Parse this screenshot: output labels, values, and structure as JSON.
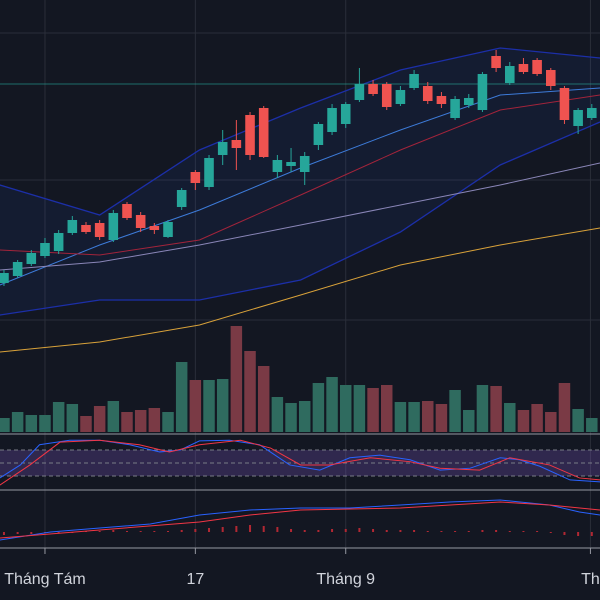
{
  "chart_data": {
    "type": "candlestick",
    "background": "#131722",
    "xlim": [
      -0.29,
      43.6
    ],
    "xticks": [
      {
        "value": 3,
        "label": "Tháng Tám"
      },
      {
        "value": 14,
        "label": "17"
      },
      {
        "value": 25,
        "label": "Tháng 9"
      },
      {
        "value": 42.9,
        "label": "Th"
      }
    ],
    "ylim": [
      -105,
      330
    ],
    "ygrid": [
      297,
      150,
      10
    ],
    "price_line": 246,
    "up_color": "#26a69a",
    "down_color": "#ef5350",
    "open": [
      47,
      54,
      66,
      74,
      79,
      97,
      105,
      107,
      90,
      126,
      115,
      104,
      93,
      123,
      158,
      143,
      175,
      190,
      215,
      222,
      158,
      164,
      158,
      185,
      198,
      206,
      230,
      246,
      246,
      226,
      242,
      244,
      234,
      212,
      225,
      220,
      274,
      247,
      266,
      270,
      260,
      242,
      204,
      212
    ],
    "high": [
      60,
      70,
      80,
      92,
      100,
      114,
      108,
      110,
      120,
      128,
      118,
      107,
      110,
      142,
      160,
      175,
      200,
      210,
      218,
      224,
      175,
      182,
      178,
      208,
      226,
      228,
      262,
      250,
      248,
      244,
      260,
      248,
      238,
      234,
      236,
      258,
      280,
      268,
      272,
      272,
      262,
      244,
      222,
      226
    ],
    "low": [
      44,
      52,
      64,
      72,
      76,
      95,
      96,
      90,
      88,
      110,
      98,
      96,
      92,
      120,
      140,
      140,
      165,
      160,
      170,
      172,
      152,
      158,
      145,
      180,
      195,
      202,
      228,
      234,
      220,
      224,
      240,
      226,
      222,
      210,
      222,
      218,
      258,
      245,
      256,
      254,
      240,
      206,
      196,
      210
    ],
    "close": [
      57,
      68,
      77,
      87,
      97,
      110,
      98,
      93,
      117,
      112,
      102,
      100,
      108,
      140,
      147,
      172,
      188,
      182,
      175,
      173,
      170,
      168,
      174,
      206,
      222,
      226,
      246,
      236,
      223,
      240,
      256,
      229,
      226,
      231,
      232,
      256,
      262,
      264,
      258,
      256,
      244,
      210,
      220,
      222
    ],
    "bands": {
      "color": "#1c2fa8",
      "fill": "#2962ff",
      "x": [
        -0.3,
        7,
        14.3,
        21.7,
        29,
        36.3,
        43.6
      ],
      "upper": [
        145,
        115,
        180,
        222,
        260,
        282,
        272
      ],
      "lower": [
        15,
        30,
        30,
        50,
        98,
        165,
        208
      ]
    },
    "overlays": [
      {
        "color": "#3d7bd9",
        "x": [
          -0.3,
          7,
          14.3,
          21.7,
          29,
          36.3,
          43.6
        ],
        "values": [
          45,
          85,
          120,
          162,
          200,
          235,
          242
        ]
      },
      {
        "color": "#a3243b",
        "x": [
          -0.3,
          7,
          14.3,
          21.7,
          29,
          36.3,
          43.6
        ],
        "values": [
          80,
          75,
          90,
          135,
          180,
          220,
          235
        ]
      },
      {
        "color": "#8a86b8",
        "x": [
          -0.3,
          7,
          14.3,
          21.7,
          29,
          36.3,
          43.6
        ],
        "values": [
          60,
          68,
          85,
          105,
          125,
          145,
          167
        ]
      },
      {
        "color": "#d9a23a",
        "x": [
          -0.3,
          7,
          14.3,
          21.7,
          29,
          36.3,
          43.6
        ],
        "values": [
          -22,
          -12,
          5,
          35,
          65,
          85,
          102
        ]
      }
    ],
    "volume": {
      "ylim": [
        0,
        110
      ],
      "up_color": "#2f6b5f",
      "down_color": "#7a3a45",
      "values": [
        14,
        20,
        17,
        17,
        30,
        28,
        16,
        26,
        31,
        20,
        22,
        24,
        20,
        70,
        52,
        52,
        53,
        106,
        81,
        66,
        35,
        29,
        31,
        49,
        55,
        47,
        47,
        44,
        47,
        30,
        30,
        31,
        28,
        42,
        22,
        47,
        46,
        29,
        22,
        28,
        20,
        49,
        23,
        14
      ]
    },
    "rsi": {
      "ylim": [
        10,
        91.5
      ],
      "levels": [
        70,
        50,
        30
      ],
      "band_color": "#7e57c2",
      "series": [
        {
          "color": "#2962ff",
          "x": [
            -0.3,
            1.2,
            2.6,
            4.8,
            7,
            9.2,
            11.4,
            12.9,
            14.3,
            16.5,
            18.7,
            20.9,
            23.1,
            25.3,
            27.5,
            29.7,
            31.9,
            34.1,
            36.3,
            37.7,
            39.2,
            41.4,
            43.6
          ],
          "values": [
            27,
            47,
            78,
            85,
            85,
            78,
            67,
            70,
            84,
            85,
            78,
            47,
            39,
            58,
            62,
            55,
            39,
            42,
            58,
            55,
            45,
            24,
            21
          ]
        },
        {
          "color": "#f23645",
          "x": [
            -0.3,
            1.9,
            4.1,
            7,
            9.9,
            12.1,
            14.3,
            17.3,
            19.5,
            21.7,
            23.8,
            26.8,
            29.7,
            31.9,
            34.8,
            37,
            39.9,
            42.1,
            43.6
          ],
          "values": [
            16,
            47,
            82,
            85,
            78,
            67,
            78,
            85,
            73,
            47,
            47,
            58,
            52,
            42,
            39,
            58,
            47,
            27,
            24
          ]
        }
      ]
    },
    "macd": {
      "ylim": [
        -13,
        40
      ],
      "hist_color": "#b22833",
      "histogram": [
        -3,
        -2,
        -2,
        -1,
        -1,
        0,
        1,
        1,
        2,
        1,
        1,
        1,
        1,
        2,
        3,
        4,
        5,
        6,
        7,
        6,
        5,
        3,
        2,
        2,
        3,
        3,
        4,
        3,
        2,
        2,
        2,
        1,
        1,
        1,
        1,
        2,
        2,
        1,
        1,
        1,
        -1,
        -3,
        -4,
        -4
      ],
      "series": [
        {
          "color": "#2962ff",
          "x": [
            -0.3,
            3.4,
            7,
            10.7,
            14.3,
            18,
            21.7,
            25.3,
            29,
            32.6,
            36.3,
            39.9,
            42.1,
            43.6
          ],
          "values": [
            -8,
            0,
            4,
            8,
            17,
            22,
            24,
            24,
            27,
            30,
            32,
            27,
            20,
            17
          ]
        },
        {
          "color": "#f23645",
          "x": [
            -0.3,
            7,
            14.3,
            18,
            21.7,
            29,
            36.3,
            39.9,
            43.6
          ],
          "values": [
            -6,
            2,
            10,
            17,
            22,
            24,
            30,
            27,
            22
          ]
        }
      ]
    }
  }
}
